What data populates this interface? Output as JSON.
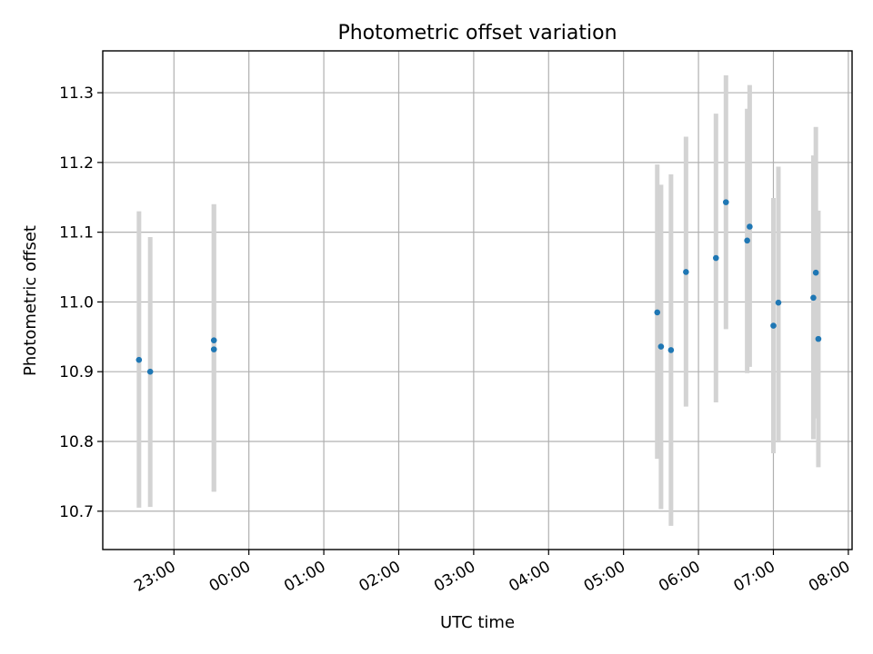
{
  "chart_data": {
    "type": "scatter",
    "title": "Photometric offset variation",
    "xlabel": "UTC time",
    "ylabel": "Photometric offset",
    "x_tick_labels": [
      "23:00",
      "00:00",
      "01:00",
      "02:00",
      "03:00",
      "04:00",
      "05:00",
      "06:00",
      "07:00",
      "08:00"
    ],
    "x_ticks_hours": [
      23,
      24,
      25,
      26,
      27,
      28,
      29,
      30,
      31,
      32
    ],
    "xlim_hours": [
      22.05,
      32.05
    ],
    "y_ticks": [
      10.7,
      10.8,
      10.9,
      11.0,
      11.1,
      11.2,
      11.3
    ],
    "ylim": [
      10.645,
      11.36
    ],
    "grid": true,
    "x_note": "x values are UTC times; hours >= 24 denote the next day",
    "points": [
      {
        "x": "22:32",
        "y": 10.917,
        "ylo": 10.705,
        "yhi": 11.13
      },
      {
        "x": "22:41",
        "y": 10.9,
        "ylo": 10.706,
        "yhi": 11.093
      },
      {
        "x": "23:32",
        "y": 10.945,
        "ylo": 10.728,
        "yhi": 11.14
      },
      {
        "x": "23:32",
        "y": 10.932,
        "ylo": 10.728,
        "yhi": 11.14
      },
      {
        "x": "05:27",
        "y": 10.985,
        "ylo": 10.775,
        "yhi": 11.197
      },
      {
        "x": "05:30",
        "y": 10.936,
        "ylo": 10.703,
        "yhi": 11.168
      },
      {
        "x": "05:38",
        "y": 10.931,
        "ylo": 10.679,
        "yhi": 11.183
      },
      {
        "x": "05:50",
        "y": 11.043,
        "ylo": 10.85,
        "yhi": 11.237
      },
      {
        "x": "06:14",
        "y": 11.063,
        "ylo": 10.856,
        "yhi": 11.27
      },
      {
        "x": "06:22",
        "y": 11.143,
        "ylo": 10.961,
        "yhi": 11.325
      },
      {
        "x": "06:39",
        "y": 11.088,
        "ylo": 10.898,
        "yhi": 11.277
      },
      {
        "x": "06:41",
        "y": 11.108,
        "ylo": 10.907,
        "yhi": 11.311
      },
      {
        "x": "07:00",
        "y": 10.966,
        "ylo": 10.783,
        "yhi": 11.149
      },
      {
        "x": "07:04",
        "y": 10.999,
        "ylo": 10.8,
        "yhi": 11.194
      },
      {
        "x": "07:32",
        "y": 11.006,
        "ylo": 10.803,
        "yhi": 11.21
      },
      {
        "x": "07:34",
        "y": 11.042,
        "ylo": 10.833,
        "yhi": 11.251
      },
      {
        "x": "07:36",
        "y": 10.947,
        "ylo": 10.763,
        "yhi": 11.131
      }
    ]
  }
}
